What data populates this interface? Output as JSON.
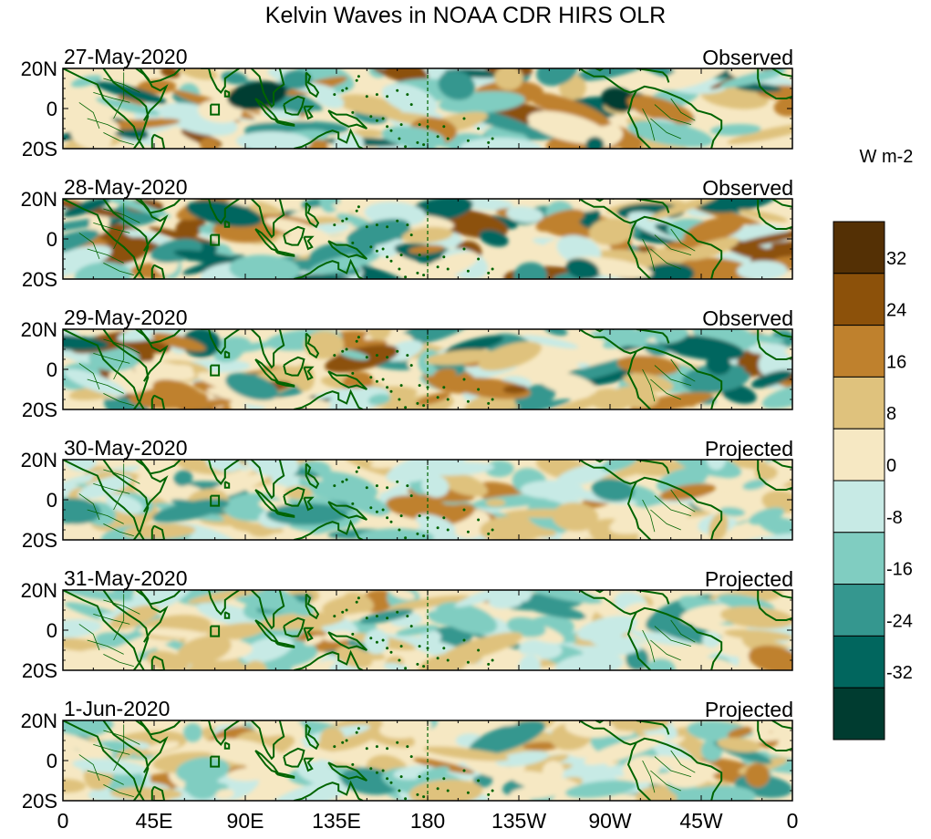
{
  "chart_data": {
    "type": "heatmap",
    "title": "Kelvin Waves in NOAA CDR HIRS OLR",
    "colorbar": {
      "units": "W m-2",
      "tick_labels": [
        "32",
        "24",
        "16",
        "8",
        "0",
        "-8",
        "-16",
        "-24",
        "-32"
      ],
      "levels": [
        40,
        32,
        24,
        16,
        8,
        0,
        -8,
        -16,
        -24,
        -32,
        -40
      ],
      "colors": [
        "#543005",
        "#8c510a",
        "#bf812d",
        "#dfc27d",
        "#f6e8c3",
        "#c7eae5",
        "#80cdc1",
        "#35978f",
        "#01665e",
        "#003c30"
      ]
    },
    "x_axis": {
      "range_deg_east": [
        0,
        360
      ],
      "ticks": [
        {
          "lon": 0,
          "label": "0"
        },
        {
          "lon": 45,
          "label": "45E"
        },
        {
          "lon": 90,
          "label": "90E"
        },
        {
          "lon": 135,
          "label": "135E"
        },
        {
          "lon": 180,
          "label": "180"
        },
        {
          "lon": 225,
          "label": "135W"
        },
        {
          "lon": 270,
          "label": "90W"
        },
        {
          "lon": 315,
          "label": "45W"
        },
        {
          "lon": 360,
          "label": "0"
        }
      ]
    },
    "y_axis": {
      "range_deg": [
        -20,
        20
      ],
      "ticks": [
        {
          "lat": 20,
          "label": "20N"
        },
        {
          "lat": 0,
          "label": "0"
        },
        {
          "lat": -20,
          "label": "20S"
        }
      ]
    },
    "reference_line": {
      "lon": 180,
      "style": "dashed"
    },
    "panels": [
      {
        "date": "27-May-2020",
        "status": "Observed"
      },
      {
        "date": "28-May-2020",
        "status": "Observed"
      },
      {
        "date": "29-May-2020",
        "status": "Observed"
      },
      {
        "date": "30-May-2020",
        "status": "Projected"
      },
      {
        "date": "31-May-2020",
        "status": "Projected"
      },
      {
        "date": "1-Jun-2020",
        "status": "Projected"
      }
    ]
  }
}
